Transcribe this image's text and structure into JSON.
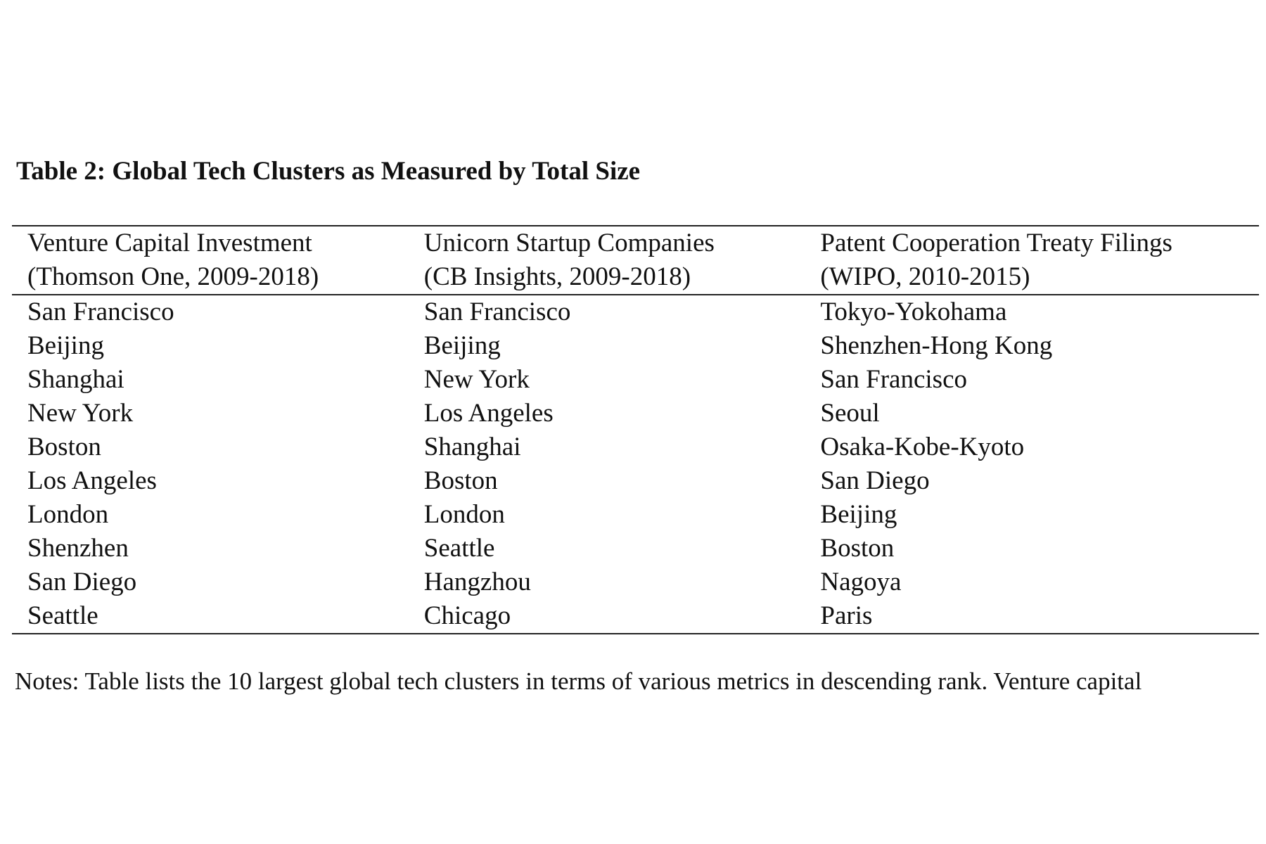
{
  "title": "Table 2: Global Tech Clusters as Measured by Total Size",
  "columns": [
    {
      "header_line1": "Venture Capital Investment",
      "header_line2": "(Thomson One, 2009-2018)"
    },
    {
      "header_line1": "Unicorn Startup Companies",
      "header_line2": "(CB Insights, 2009-2018)"
    },
    {
      "header_line1": "Patent Cooperation Treaty Filings",
      "header_line2": "(WIPO, 2010-2015)"
    }
  ],
  "rows": [
    [
      "San Francisco",
      "San Francisco",
      "Tokyo-Yokohama"
    ],
    [
      "Beijing",
      "Beijing",
      "Shenzhen-Hong Kong"
    ],
    [
      "Shanghai",
      "New York",
      "San Francisco"
    ],
    [
      "New York",
      "Los Angeles",
      "Seoul"
    ],
    [
      "Boston",
      "Shanghai",
      "Osaka-Kobe-Kyoto"
    ],
    [
      "Los Angeles",
      "Boston",
      "San Diego"
    ],
    [
      "London",
      "London",
      "Beijing"
    ],
    [
      "Shenzhen",
      "Seattle",
      "Boston"
    ],
    [
      "San Diego",
      "Hangzhou",
      "Nagoya"
    ],
    [
      "Seattle",
      "Chicago",
      "Paris"
    ]
  ],
  "notes": "Notes: Table lists the 10 largest global tech clusters in terms of various metrics in descending rank. Venture capital"
}
